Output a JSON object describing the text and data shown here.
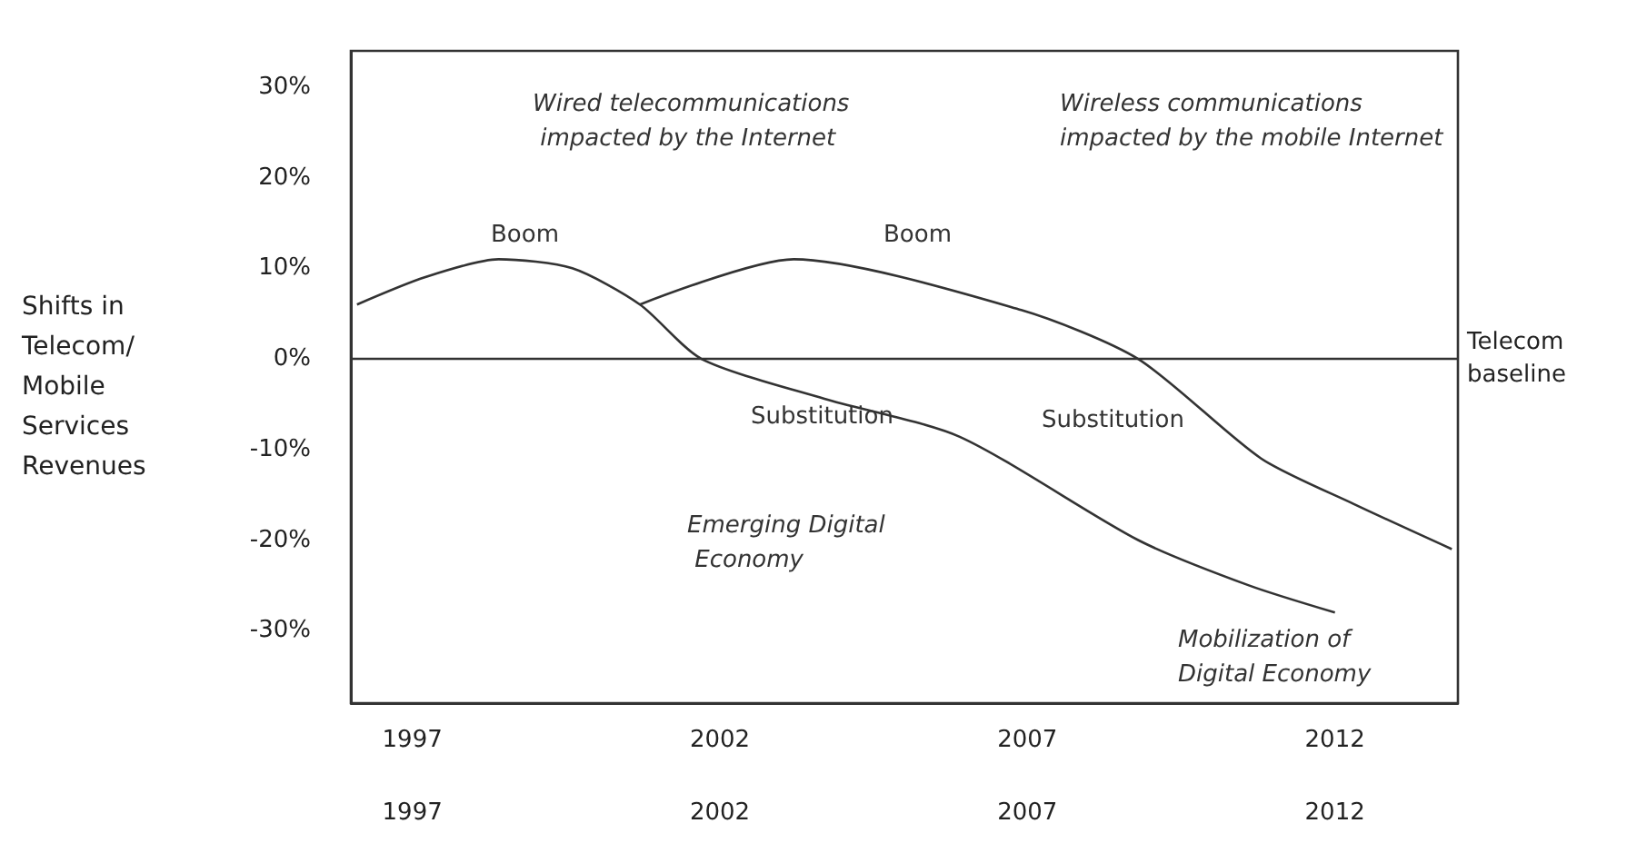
{
  "chart_data": {
    "type": "line",
    "ylabel": "Shifts in Telecom/ Mobile Services Revenues",
    "series": [
      {
        "color": "#333333",
        "x": [
          1996.1,
          1997.2,
          1998.4,
          1999.6,
          2000.7,
          2001.7,
          2003.7,
          2005.9,
          2008.8,
          2010.6,
          2012
        ],
        "values": [
          6,
          9,
          11,
          10,
          6,
          0,
          -4.4,
          -8.6,
          -20,
          -25,
          -28
        ]
      },
      {
        "color": "#333333",
        "x": [
          2000.7,
          2003.2,
          2006.9,
          2008.8,
          2010.8,
          2012.3,
          2013.9
        ],
        "values": [
          6,
          11,
          5.4,
          0,
          -11,
          -16,
          -21
        ]
      }
    ],
    "xlim": [
      1996,
      2014
    ],
    "xticks": [
      1997,
      2002,
      2007,
      2012
    ],
    "x2lim": [
      1996,
      2014
    ],
    "x2ticks": [
      1997,
      2002,
      2007,
      2012
    ],
    "ylim": [
      -38,
      34
    ],
    "yticks": [
      {
        "value": 30,
        "label": "30%"
      },
      {
        "value": 20,
        "label": "20%"
      },
      {
        "value": 10,
        "label": "10%"
      },
      {
        "value": 0,
        "label": "0%"
      },
      {
        "value": -10,
        "label": "-10%"
      },
      {
        "value": -20,
        "label": "-20%"
      },
      {
        "value": -30,
        "label": "-30%"
      }
    ],
    "ref_lines": [
      {
        "axis": "y",
        "value": 0,
        "label": "Telecom baseline",
        "color": "#333333"
      }
    ],
    "annotations": [
      "Wired telecommunications impacted by the Internet",
      "Wireless communications impacted by the mobile Internet",
      "Boom",
      "Boom",
      "Substitution",
      "Substitution",
      "Emerging Digital Economy",
      "Mobilization of Digital Economy"
    ],
    "grid": false,
    "marker": "none",
    "line_style": "solid"
  }
}
